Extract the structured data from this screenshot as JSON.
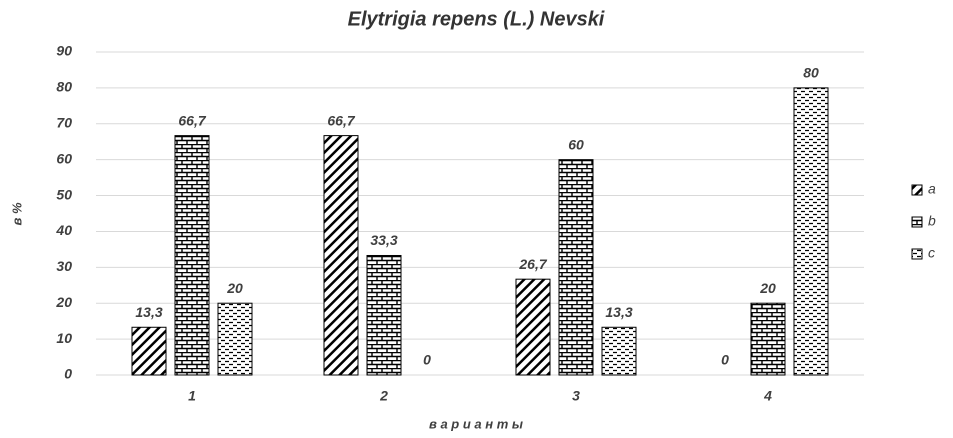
{
  "chart_data": {
    "type": "bar",
    "title": "Elytrigia repens (L.) Nevski",
    "y_label": "в %",
    "x_label": "в а р и а н т ы",
    "categories": [
      "1",
      "2",
      "3",
      "4"
    ],
    "series": [
      {
        "name": "a",
        "color": "#000000",
        "pattern": "diagonal",
        "values": [
          13.3,
          66.7,
          26.7,
          0
        ],
        "value_labels": [
          "13,3",
          "66,7",
          "26,7",
          "0"
        ]
      },
      {
        "name": "b",
        "color": "#000000",
        "pattern": "brick",
        "values": [
          66.7,
          33.3,
          60,
          20
        ],
        "value_labels": [
          "66,7",
          "33,3",
          "60",
          "20"
        ]
      },
      {
        "name": "c",
        "color": "#000000",
        "pattern": "dash",
        "values": [
          20,
          0,
          13.3,
          80
        ],
        "value_labels": [
          "20",
          "0",
          "13,3",
          "80"
        ]
      }
    ],
    "ylim": [
      0,
      90
    ],
    "yticks": [
      0,
      10,
      20,
      30,
      40,
      50,
      60,
      70,
      80,
      90
    ],
    "grid": true,
    "legend": "right"
  }
}
